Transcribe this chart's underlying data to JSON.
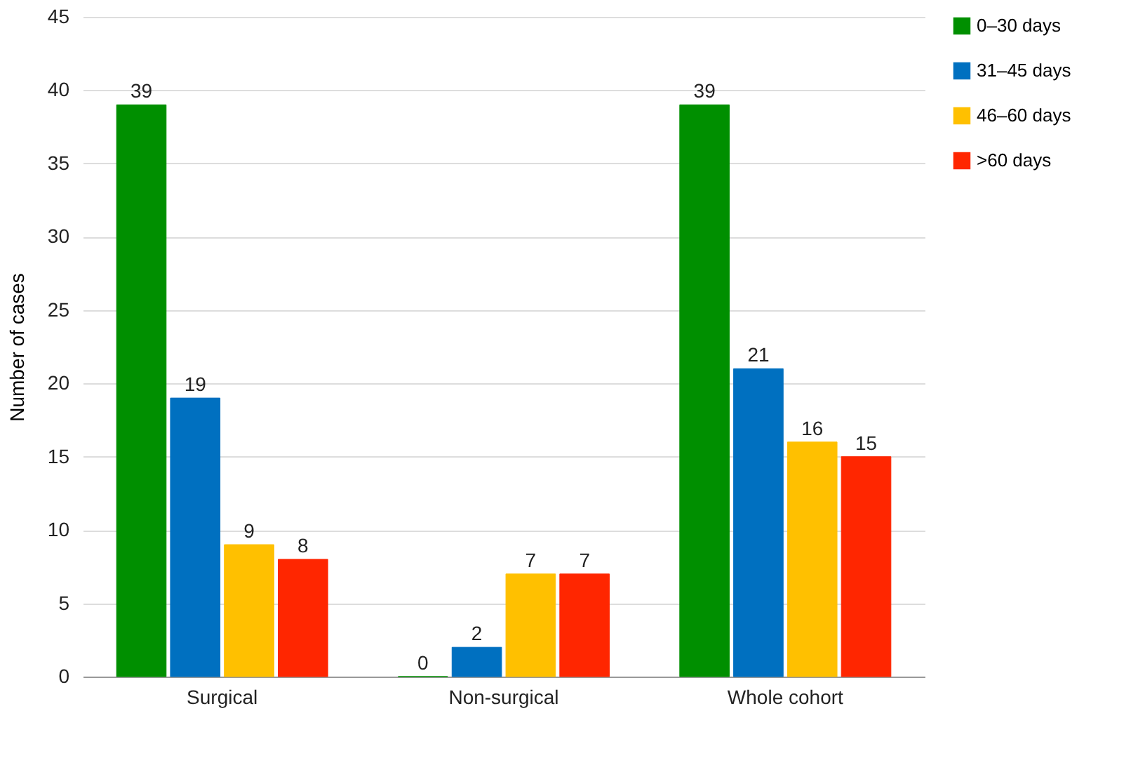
{
  "chart_data": {
    "type": "bar",
    "ylabel": "Number of cases",
    "categories": [
      "Surgical",
      "Non-surgical",
      "Whole cohort"
    ],
    "series": [
      {
        "name": "0–30 days",
        "color": "#008f00",
        "values": [
          39,
          0,
          39
        ]
      },
      {
        "name": "31–45 days",
        "color": "#0070c0",
        "values": [
          19,
          2,
          21
        ]
      },
      {
        "name": "46–60 days",
        "color": "#ffc000",
        "values": [
          9,
          7,
          16
        ]
      },
      {
        "name": ">60 days",
        "color": "#ff2600",
        "values": [
          8,
          7,
          15
        ]
      }
    ],
    "ylim": [
      0,
      45
    ],
    "yticks": [
      0,
      5,
      10,
      15,
      20,
      25,
      30,
      35,
      40,
      45
    ],
    "grid": "y",
    "legend": "top right",
    "data_labels": true
  }
}
